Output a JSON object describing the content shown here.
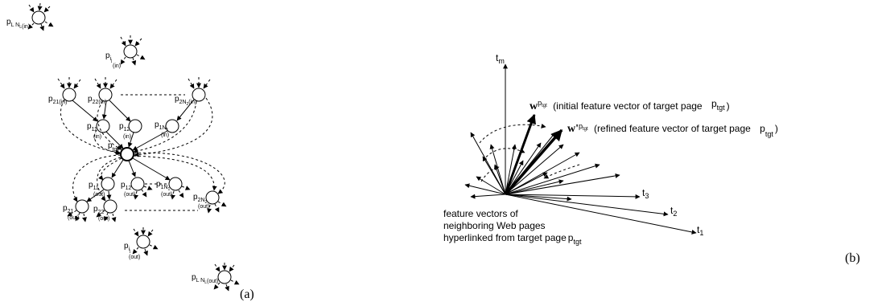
{
  "panel_a": {
    "caption": "(a)",
    "labels": {
      "pLN_in": {
        "main": "p",
        "sub": "L N",
        "subsub": "L",
        "suffix": "(in)"
      },
      "pi_in": {
        "main": "p",
        "sub": "i",
        "subsub": "j",
        "suffix": "(in)"
      },
      "p21_in": {
        "main": "p",
        "sub": "21",
        "suffix": "(in)"
      },
      "p22_in": {
        "main": "p",
        "sub": "22",
        "suffix": "(in)"
      },
      "p2N_in": {
        "main": "p",
        "sub": "2N",
        "subsub": "2",
        "suffix": "(in)"
      },
      "p11_in": {
        "main": "p",
        "sub": "11",
        "suffix": "(in)"
      },
      "p12_in": {
        "main": "p",
        "sub": "12",
        "suffix": "(in)"
      },
      "p1N_in": {
        "main": "p",
        "sub": "1N",
        "subsub": "1",
        "suffix": "(in)"
      },
      "ptgt": {
        "main": "p",
        "sub": "tgt"
      },
      "p11_out": {
        "main": "p",
        "sub": "11",
        "suffix": "(out)"
      },
      "p12_out": {
        "main": "p",
        "sub": "12",
        "suffix": "(out)"
      },
      "p1N_out": {
        "main": "p",
        "sub": "1N",
        "subsub": "1",
        "suffix": "(out)"
      },
      "p21_out": {
        "main": "p",
        "sub": "21",
        "suffix": "(out)"
      },
      "p22_out": {
        "main": "p",
        "sub": "22",
        "suffix": "(out)"
      },
      "p2N_out": {
        "main": "p",
        "sub": "2N",
        "subsub": "2",
        "suffix": "(out)"
      },
      "pi_out": {
        "main": "p",
        "sub": "i",
        "subsub": "j",
        "suffix": "(out)"
      },
      "pLN_out": {
        "main": "p",
        "sub": "L N",
        "subsub": "L",
        "suffix": "(out)"
      }
    }
  },
  "panel_b": {
    "caption": "(b)",
    "axes": {
      "tm": {
        "main": "t",
        "sub": "m"
      },
      "t3": {
        "main": "t",
        "sub": "3"
      },
      "t2": {
        "main": "t",
        "sub": "2"
      },
      "t1": {
        "main": "t",
        "sub": "1"
      }
    },
    "initial_vector": {
      "symbol": "w",
      "sup": "p",
      "supsub": "tgt",
      "text": "(initial feature vector of target page",
      "page": "p",
      "page_sub": "tgt",
      "close": ")"
    },
    "refined_vector": {
      "symbol": "w'",
      "sup": "p",
      "supsub": "tgt",
      "text": "(refined feature vector of target page",
      "page": "p",
      "page_sub": "tgt",
      "close": ")"
    },
    "neighbor_note": {
      "line1": "feature vectors of",
      "line2": "neighboring Web pages",
      "line3": "hyperlinked from target page",
      "page": "p",
      "page_sub": "tgt"
    }
  }
}
